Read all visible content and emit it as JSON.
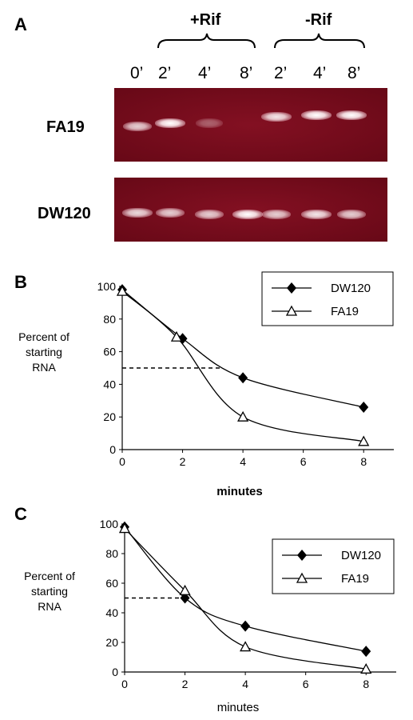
{
  "panelA": {
    "letter": "A",
    "conditions": {
      "plus_rif": "+Rif",
      "minus_rif": "-Rif"
    },
    "lanes": [
      "0’",
      "2’",
      "4’",
      "8’",
      "2’",
      "4’",
      "8’"
    ],
    "strains": [
      "FA19",
      "DW120"
    ],
    "bands": {
      "FA19": [
        0.8,
        1.0,
        0.35,
        0.0,
        0.9,
        1.0,
        1.0
      ],
      "DW120": [
        0.85,
        0.8,
        0.8,
        1.0,
        0.8,
        0.9,
        0.8
      ]
    }
  },
  "chart_data": [
    {
      "type": "line",
      "panel": "B",
      "xlabel": "minutes",
      "ylabel": [
        "Percent of",
        "starting",
        "RNA"
      ],
      "xlim": [
        0,
        9
      ],
      "ylim": [
        0,
        100
      ],
      "xticks": [
        0,
        2,
        4,
        6,
        8
      ],
      "yticks": [
        0,
        20,
        40,
        60,
        80,
        100
      ],
      "series": [
        {
          "name": "DW120",
          "marker": "diamond",
          "x": [
            0,
            2,
            4,
            8
          ],
          "y": [
            98,
            68,
            44,
            26
          ]
        },
        {
          "name": "FA19",
          "marker": "triangle",
          "x": [
            0,
            1.8,
            4,
            8
          ],
          "y": [
            97,
            69,
            20,
            5
          ]
        }
      ],
      "reference_line": {
        "y": 50,
        "x_end": 3.3,
        "style": "dashed"
      },
      "legend": "top-right"
    },
    {
      "type": "line",
      "panel": "C",
      "xlabel": "minutes",
      "ylabel": [
        "Percent of",
        "starting",
        "RNA"
      ],
      "xlim": [
        0,
        9
      ],
      "ylim": [
        0,
        100
      ],
      "xticks": [
        0,
        2,
        4,
        6,
        8
      ],
      "yticks": [
        0,
        20,
        40,
        60,
        80,
        100
      ],
      "series": [
        {
          "name": "DW120",
          "marker": "diamond",
          "x": [
            0,
            2,
            4,
            8
          ],
          "y": [
            98,
            50,
            31,
            14
          ]
        },
        {
          "name": "FA19",
          "marker": "triangle",
          "x": [
            0,
            2,
            4,
            8
          ],
          "y": [
            97,
            55,
            17,
            2
          ]
        }
      ],
      "reference_line": {
        "y": 50,
        "x_end": 2,
        "style": "dashed"
      },
      "legend": "top-right"
    }
  ]
}
